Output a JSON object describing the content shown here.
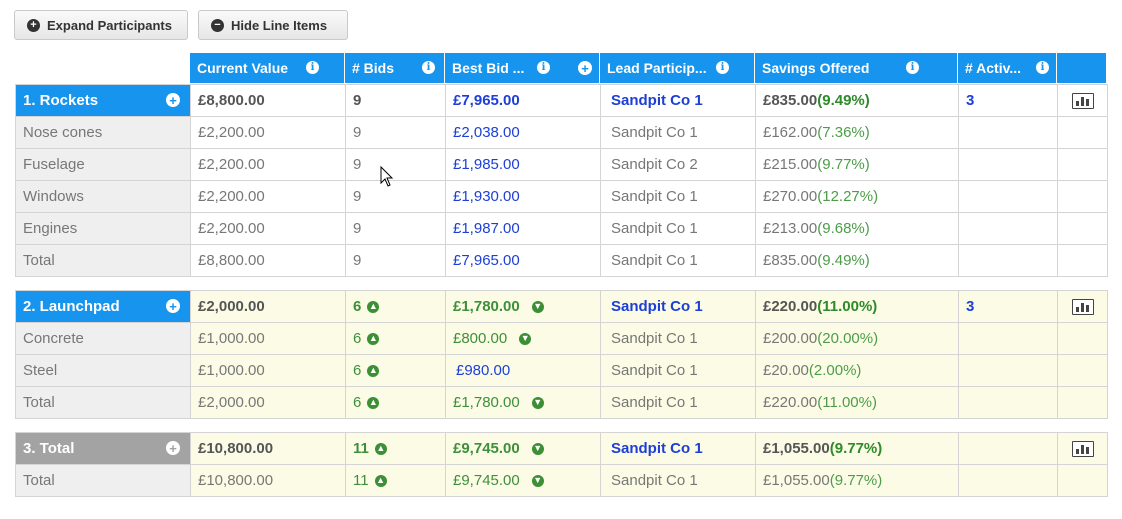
{
  "toolbar": {
    "expand_label": "Expand Participants",
    "hide_label": "Hide Line Items"
  },
  "columns": [
    {
      "label": "Current Value",
      "info": "i"
    },
    {
      "label": "# Bids",
      "info": "i"
    },
    {
      "label": "Best Bid ...",
      "info": "i",
      "plus": "+"
    },
    {
      "label": "Lead Particip...",
      "info": "i"
    },
    {
      "label": "Savings Offered",
      "info": "i"
    },
    {
      "label": "# Activ...",
      "info": "i"
    },
    {
      "label": ""
    }
  ],
  "groups": [
    {
      "title": "1. Rockets",
      "main": {
        "current": "£8,800.00",
        "bids": "9",
        "best_bid": "£7,965.00",
        "lead": "Sandpit Co 1",
        "savings": "£835.00",
        "savings_pct": "(9.49%)",
        "active": "3"
      },
      "items": [
        {
          "name": "Nose cones",
          "current": "£2,200.00",
          "bids": "9",
          "best_bid": "£2,038.00",
          "lead": "Sandpit Co 1",
          "savings": "£162.00",
          "savings_pct": "(7.36%)"
        },
        {
          "name": "Fuselage",
          "current": "£2,200.00",
          "bids": "9",
          "best_bid": "£1,985.00",
          "lead": "Sandpit Co 2",
          "savings": "£215.00",
          "savings_pct": "(9.77%)"
        },
        {
          "name": "Windows",
          "current": "£2,200.00",
          "bids": "9",
          "best_bid": "£1,930.00",
          "lead": "Sandpit Co 1",
          "savings": "£270.00",
          "savings_pct": "(12.27%)"
        },
        {
          "name": "Engines",
          "current": "£2,200.00",
          "bids": "9",
          "best_bid": "£1,987.00",
          "lead": "Sandpit Co 1",
          "savings": "£213.00",
          "savings_pct": "(9.68%)"
        },
        {
          "name": "Total",
          "current": "£8,800.00",
          "bids": "9",
          "best_bid": "£7,965.00",
          "lead": "Sandpit Co 1",
          "savings": "£835.00",
          "savings_pct": "(9.49%)"
        }
      ]
    },
    {
      "title": "2. Launchpad",
      "main": {
        "current": "£2,000.00",
        "bids": "6",
        "best_bid": "£1,780.00",
        "lead": "Sandpit Co 1",
        "savings": "£220.00",
        "savings_pct": "(11.00%)",
        "active": "3"
      },
      "items": [
        {
          "name": "Concrete",
          "current": "£1,000.00",
          "bids": "6",
          "best_bid": "£800.00",
          "lead": "Sandpit Co 1",
          "savings": "£200.00",
          "savings_pct": "(20.00%)"
        },
        {
          "name": "Steel",
          "current": "£1,000.00",
          "bids": "6",
          "best_bid": "£980.00",
          "lead": "Sandpit Co 1",
          "savings": "£20.00",
          "savings_pct": "(2.00%)"
        },
        {
          "name": "Total",
          "current": "£2,000.00",
          "bids": "6",
          "best_bid": "£1,780.00",
          "lead": "Sandpit Co 1",
          "savings": "£220.00",
          "savings_pct": "(11.00%)"
        }
      ]
    },
    {
      "title": "3. Total",
      "main": {
        "current": "£10,800.00",
        "bids": "11",
        "best_bid": "£9,745.00",
        "lead": "Sandpit Co 1",
        "savings": "£1,055.00",
        "savings_pct": "(9.77%)",
        "active": ""
      },
      "items": [
        {
          "name": "Total",
          "current": "£10,800.00",
          "bids": "11",
          "best_bid": "£9,745.00",
          "lead": "Sandpit Co 1",
          "savings": "£1,055.00",
          "savings_pct": "(9.77%)"
        }
      ]
    }
  ]
}
